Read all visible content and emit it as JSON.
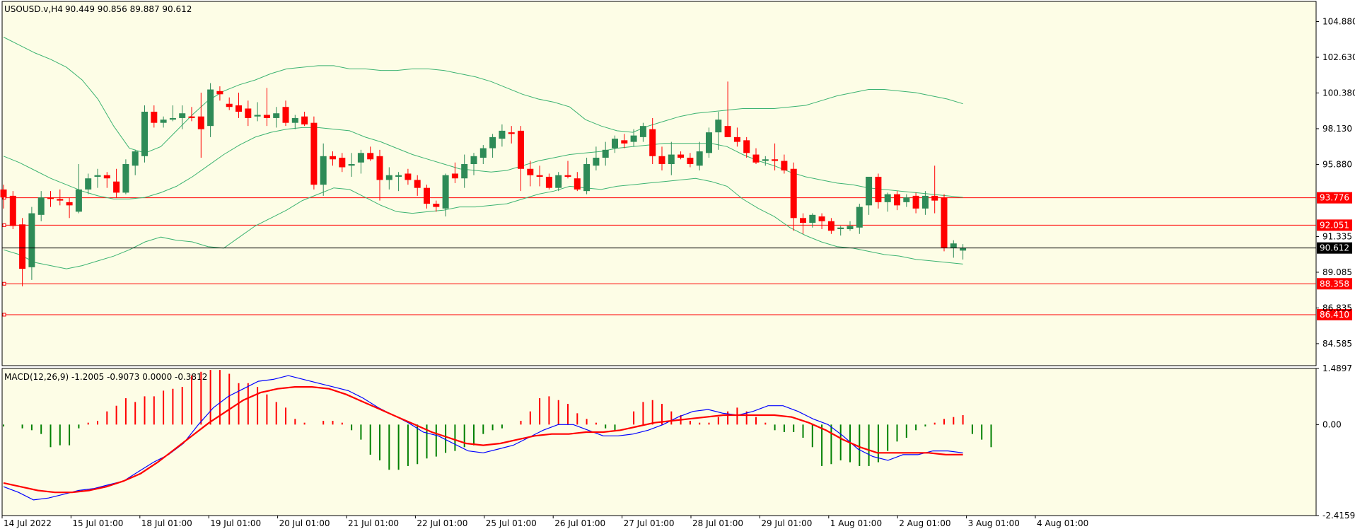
{
  "chart_data": {
    "type": "candlestick",
    "symbol_label": "USOUSD.v,H4",
    "ohlc_header": "90.449 90.856 89.887 90.612",
    "last_price": "90.612",
    "price_ticks": [
      "104.880",
      "102.630",
      "100.380",
      "98.130",
      "95.880",
      "91.335",
      "89.085",
      "86.835",
      "84.585"
    ],
    "price_range": [
      83.2,
      106.15
    ],
    "horizontal_levels": [
      {
        "label": "93.776",
        "value": 93.776
      },
      {
        "label": "92.051",
        "value": 92.051
      },
      {
        "label": "88.358",
        "value": 88.358
      },
      {
        "label": "86.410",
        "value": 86.41
      }
    ],
    "time_labels": [
      "14 Jul 2022",
      "15 Jul 01:00",
      "18 Jul 01:00",
      "19 Jul 01:00",
      "20 Jul 01:00",
      "21 Jul 01:00",
      "22 Jul 01:00",
      "25 Jul 01:00",
      "26 Jul 01:00",
      "27 Jul 01:00",
      "28 Jul 01:00",
      "29 Jul 01:00",
      "1 Aug 01:00",
      "2 Aug 01:00",
      "3 Aug 01:00",
      "4 Aug 01:00"
    ],
    "candles": [
      [
        94.3,
        94.6,
        93.1,
        93.8
      ],
      [
        93.9,
        94.2,
        91.8,
        92.0
      ],
      [
        92.1,
        92.5,
        88.2,
        89.3
      ],
      [
        89.4,
        93.2,
        88.6,
        92.8
      ],
      [
        92.7,
        94.2,
        92.3,
        93.8
      ],
      [
        93.8,
        94.2,
        93.2,
        93.7
      ],
      [
        93.7,
        94.3,
        93.3,
        93.6
      ],
      [
        93.5,
        93.8,
        92.5,
        93.3
      ],
      [
        92.9,
        95.9,
        92.8,
        94.3
      ],
      [
        94.3,
        95.3,
        94.0,
        95.0
      ],
      [
        95.1,
        95.6,
        94.4,
        95.2
      ],
      [
        95.2,
        95.4,
        94.4,
        95.0
      ],
      [
        94.8,
        95.6,
        93.8,
        94.1
      ],
      [
        94.1,
        96.2,
        94.0,
        95.9
      ],
      [
        95.8,
        96.8,
        95.2,
        96.7
      ],
      [
        96.4,
        99.6,
        96.0,
        99.2
      ],
      [
        99.2,
        99.6,
        98.2,
        98.5
      ],
      [
        98.5,
        98.9,
        98.2,
        98.7
      ],
      [
        98.7,
        99.6,
        98.6,
        98.8
      ],
      [
        98.8,
        99.6,
        98.1,
        99.1
      ],
      [
        98.9,
        99.5,
        98.6,
        98.8
      ],
      [
        98.9,
        100.4,
        96.3,
        98.1
      ],
      [
        98.3,
        101.0,
        97.6,
        100.6
      ],
      [
        100.5,
        100.8,
        99.9,
        100.3
      ],
      [
        99.7,
        100.1,
        99.3,
        99.5
      ],
      [
        99.6,
        100.4,
        98.8,
        99.2
      ],
      [
        99.4,
        99.9,
        98.3,
        98.8
      ],
      [
        98.9,
        99.8,
        98.6,
        99.0
      ],
      [
        99.0,
        100.7,
        98.3,
        98.8
      ],
      [
        98.8,
        99.5,
        98.2,
        99.1
      ],
      [
        99.5,
        99.9,
        98.3,
        98.5
      ],
      [
        98.5,
        99.0,
        98.1,
        98.8
      ],
      [
        98.9,
        99.2,
        98.3,
        98.4
      ],
      [
        98.5,
        98.9,
        94.3,
        94.6
      ],
      [
        94.6,
        97.2,
        93.9,
        96.4
      ],
      [
        96.4,
        96.7,
        95.8,
        96.2
      ],
      [
        96.3,
        96.6,
        95.4,
        95.7
      ],
      [
        95.8,
        96.6,
        95.1,
        95.9
      ],
      [
        96.0,
        96.8,
        95.3,
        96.6
      ],
      [
        96.6,
        97.0,
        96.1,
        96.2
      ],
      [
        96.4,
        96.8,
        93.6,
        94.9
      ],
      [
        94.9,
        95.7,
        94.3,
        95.2
      ],
      [
        95.1,
        95.4,
        94.2,
        95.2
      ],
      [
        95.3,
        95.6,
        94.6,
        94.9
      ],
      [
        94.9,
        95.2,
        93.9,
        94.4
      ],
      [
        94.4,
        94.6,
        93.1,
        93.4
      ],
      [
        93.4,
        93.6,
        92.9,
        93.2
      ],
      [
        93.1,
        95.3,
        92.6,
        95.2
      ],
      [
        95.3,
        96.0,
        94.7,
        95.0
      ],
      [
        95.0,
        96.5,
        94.4,
        95.9
      ],
      [
        95.9,
        96.6,
        95.2,
        96.4
      ],
      [
        96.3,
        97.1,
        95.9,
        96.9
      ],
      [
        96.9,
        97.8,
        96.3,
        97.6
      ],
      [
        97.5,
        98.4,
        97.0,
        98.0
      ],
      [
        97.9,
        98.3,
        97.2,
        97.8
      ],
      [
        98.0,
        98.3,
        94.2,
        95.6
      ],
      [
        95.6,
        96.1,
        94.5,
        95.2
      ],
      [
        95.2,
        95.8,
        94.5,
        95.1
      ],
      [
        95.1,
        95.3,
        94.3,
        94.4
      ],
      [
        94.4,
        95.4,
        94.2,
        95.2
      ],
      [
        95.2,
        96.1,
        95.0,
        95.1
      ],
      [
        95.0,
        95.4,
        94.2,
        94.3
      ],
      [
        94.2,
        96.3,
        94.0,
        95.9
      ],
      [
        95.8,
        97.0,
        95.5,
        96.3
      ],
      [
        96.3,
        97.3,
        95.8,
        96.8
      ],
      [
        96.9,
        97.7,
        96.6,
        97.5
      ],
      [
        97.4,
        97.8,
        96.9,
        97.2
      ],
      [
        97.3,
        98.1,
        97.0,
        97.7
      ],
      [
        97.6,
        98.5,
        97.3,
        98.3
      ],
      [
        98.1,
        98.8,
        95.9,
        96.4
      ],
      [
        96.4,
        97.0,
        95.5,
        95.9
      ],
      [
        95.9,
        97.3,
        95.2,
        96.5
      ],
      [
        96.5,
        96.7,
        96.2,
        96.3
      ],
      [
        96.3,
        96.6,
        95.7,
        95.9
      ],
      [
        95.8,
        97.3,
        95.5,
        96.7
      ],
      [
        96.6,
        98.2,
        96.3,
        97.9
      ],
      [
        97.9,
        99.2,
        96.8,
        98.7
      ],
      [
        98.3,
        101.1,
        97.6,
        97.6
      ],
      [
        97.6,
        98.2,
        97.0,
        97.3
      ],
      [
        97.4,
        97.6,
        96.3,
        96.6
      ],
      [
        96.5,
        96.9,
        95.9,
        96.0
      ],
      [
        96.1,
        96.4,
        95.8,
        96.2
      ],
      [
        96.2,
        97.2,
        95.5,
        96.1
      ],
      [
        96.1,
        96.5,
        95.3,
        95.5
      ],
      [
        95.6,
        96.0,
        91.7,
        92.5
      ],
      [
        92.5,
        92.8,
        91.5,
        92.2
      ],
      [
        92.2,
        92.8,
        91.9,
        92.7
      ],
      [
        92.6,
        92.8,
        91.8,
        92.3
      ],
      [
        92.3,
        92.5,
        91.5,
        91.7
      ],
      [
        91.8,
        92.0,
        91.4,
        91.9
      ],
      [
        91.8,
        92.3,
        91.7,
        92.0
      ],
      [
        91.9,
        93.4,
        91.5,
        93.2
      ],
      [
        93.3,
        95.0,
        92.7,
        95.1
      ],
      [
        95.1,
        95.3,
        93.1,
        93.5
      ],
      [
        93.5,
        94.1,
        92.9,
        94.0
      ],
      [
        94.0,
        94.2,
        93.0,
        93.3
      ],
      [
        93.5,
        94.0,
        93.2,
        93.8
      ],
      [
        93.9,
        94.1,
        92.8,
        93.1
      ],
      [
        93.1,
        94.2,
        92.7,
        93.9
      ],
      [
        93.9,
        95.8,
        92.8,
        93.6
      ],
      [
        93.8,
        94.0,
        90.4,
        90.6
      ],
      [
        90.6,
        91.1,
        90.0,
        90.9
      ],
      [
        90.449,
        90.856,
        89.887,
        90.612
      ]
    ],
    "bollinger": {
      "upper": [
        103.9,
        103.4,
        102.9,
        102.5,
        102.0,
        101.2,
        100.0,
        98.3,
        96.9,
        96.6,
        97.0,
        98.0,
        99.0,
        99.9,
        100.5,
        100.9,
        101.2,
        101.6,
        101.9,
        102.0,
        102.1,
        102.1,
        101.9,
        101.9,
        101.8,
        101.8,
        101.9,
        101.9,
        101.8,
        101.6,
        101.4,
        101.1,
        100.7,
        100.3,
        100.0,
        99.8,
        99.5,
        98.7,
        98.3,
        98.0,
        97.9,
        98.3,
        98.6,
        98.9,
        99.1,
        99.2,
        99.3,
        99.4,
        99.4,
        99.4,
        99.5,
        99.6,
        99.9,
        100.2,
        100.4,
        100.6,
        100.6,
        100.5,
        100.4,
        100.2,
        100.0,
        99.7
      ],
      "middle": [
        96.4,
        96.0,
        95.5,
        95.0,
        94.6,
        94.2,
        93.9,
        93.7,
        93.7,
        93.8,
        94.1,
        94.5,
        95.1,
        95.8,
        96.5,
        97.1,
        97.6,
        97.9,
        98.1,
        98.2,
        98.2,
        98.1,
        98.0,
        97.6,
        97.3,
        96.9,
        96.5,
        96.2,
        95.9,
        95.6,
        95.5,
        95.4,
        95.5,
        95.8,
        96.1,
        96.3,
        96.5,
        96.6,
        96.7,
        96.9,
        97.0,
        97.1,
        97.2,
        97.2,
        97.2,
        97.2,
        97.0,
        96.5,
        96.1,
        95.8,
        95.4,
        95.1,
        94.9,
        94.7,
        94.6,
        94.4,
        94.3,
        94.2,
        94.1,
        94.0,
        93.9,
        93.8
      ],
      "lower": [
        90.5,
        90.2,
        89.7,
        89.5,
        89.3,
        89.5,
        89.8,
        90.1,
        90.5,
        91.0,
        91.3,
        91.1,
        91.0,
        90.7,
        90.6,
        91.3,
        92.0,
        92.5,
        93.0,
        93.6,
        94.0,
        94.4,
        94.3,
        93.8,
        93.3,
        92.9,
        92.8,
        92.9,
        93.0,
        93.2,
        93.2,
        93.3,
        93.4,
        93.7,
        94.0,
        94.2,
        94.5,
        94.4,
        94.3,
        94.5,
        94.6,
        94.7,
        94.8,
        94.9,
        95.0,
        94.8,
        94.5,
        93.7,
        93.1,
        92.6,
        91.9,
        91.4,
        91.0,
        90.7,
        90.6,
        90.4,
        90.2,
        90.1,
        89.9,
        89.8,
        89.7,
        89.6
      ]
    },
    "macd_header": "MACD(12,26,9) -1.2005 -0.9073 0.0000 -0.3812",
    "macd_ticks": [
      "1.4897",
      "0.00",
      "-2.4159"
    ],
    "macd_range": [
      -2.4159,
      1.4897
    ],
    "macd_histogram": [
      -0.05,
      0.0,
      -0.1,
      -0.15,
      -0.25,
      -0.6,
      -0.55,
      -0.55,
      -0.1,
      0.05,
      0.1,
      0.35,
      0.5,
      0.7,
      0.6,
      0.75,
      0.75,
      0.9,
      0.95,
      1.0,
      1.3,
      1.4,
      1.45,
      1.45,
      1.35,
      1.1,
      1.1,
      1.0,
      0.8,
      0.6,
      0.45,
      0.15,
      0.05,
      0.0,
      0.1,
      0.1,
      0.05,
      -0.15,
      -0.4,
      -0.8,
      -0.95,
      -1.2,
      -1.2,
      -1.1,
      -1.05,
      -0.9,
      -0.85,
      -0.75,
      -0.7,
      -0.6,
      -0.55,
      -0.25,
      -0.15,
      -0.1,
      0.0,
      0.1,
      0.35,
      0.7,
      0.75,
      0.65,
      0.55,
      0.3,
      0.15,
      0.05,
      -0.1,
      -0.15,
      0.0,
      0.35,
      0.6,
      0.65,
      0.55,
      0.35,
      0.25,
      0.1,
      0.05,
      0.05,
      0.2,
      0.35,
      0.45,
      0.35,
      0.2,
      0.05,
      -0.15,
      -0.2,
      -0.2,
      -0.35,
      -0.6,
      -1.1,
      -1.05,
      -0.95,
      -1.0,
      -1.1,
      -1.1,
      -1.0,
      -0.7,
      -0.45,
      -0.35,
      -0.15,
      -0.05,
      0.05,
      0.15,
      0.2,
      0.25,
      -0.25,
      -0.4,
      -0.6
    ],
    "macd_line": [
      -1.65,
      -1.8,
      -2.0,
      -1.95,
      -1.85,
      -1.75,
      -1.7,
      -1.6,
      -1.5,
      -1.25,
      -1.0,
      -0.8,
      -0.5,
      0.0,
      0.45,
      0.75,
      0.95,
      1.15,
      1.2,
      1.3,
      1.2,
      1.1,
      1.0,
      0.9,
      0.7,
      0.45,
      0.25,
      0.05,
      -0.2,
      -0.3,
      -0.5,
      -0.7,
      -0.75,
      -0.65,
      -0.55,
      -0.35,
      -0.15,
      0.0,
      0.0,
      -0.15,
      -0.3,
      -0.3,
      -0.25,
      -0.15,
      0.0,
      0.2,
      0.35,
      0.4,
      0.3,
      0.25,
      0.35,
      0.5,
      0.5,
      0.35,
      0.15,
      0.0,
      -0.3,
      -0.65,
      -0.85,
      -0.95,
      -0.8,
      -0.8,
      -0.7,
      -0.7,
      -0.75
    ],
    "signal_line": [
      -1.55,
      -1.65,
      -1.75,
      -1.8,
      -1.8,
      -1.75,
      -1.65,
      -1.5,
      -1.3,
      -1.0,
      -0.65,
      -0.3,
      0.05,
      0.35,
      0.65,
      0.85,
      0.95,
      1.0,
      1.0,
      0.95,
      0.8,
      0.6,
      0.4,
      0.2,
      0.0,
      -0.2,
      -0.35,
      -0.5,
      -0.55,
      -0.5,
      -0.4,
      -0.3,
      -0.25,
      -0.25,
      -0.2,
      -0.2,
      -0.15,
      -0.05,
      0.05,
      0.1,
      0.15,
      0.2,
      0.25,
      0.25,
      0.25,
      0.25,
      0.2,
      0.05,
      -0.15,
      -0.4,
      -0.6,
      -0.75,
      -0.75,
      -0.75,
      -0.75,
      -0.8,
      -0.8
    ]
  },
  "colors": {
    "bull": "#2e8b57",
    "bear": "#ff0000",
    "bands": "#3cb371",
    "level": "#ff0000",
    "macd_main": "#0000ff",
    "macd_signal": "#ff0000"
  }
}
